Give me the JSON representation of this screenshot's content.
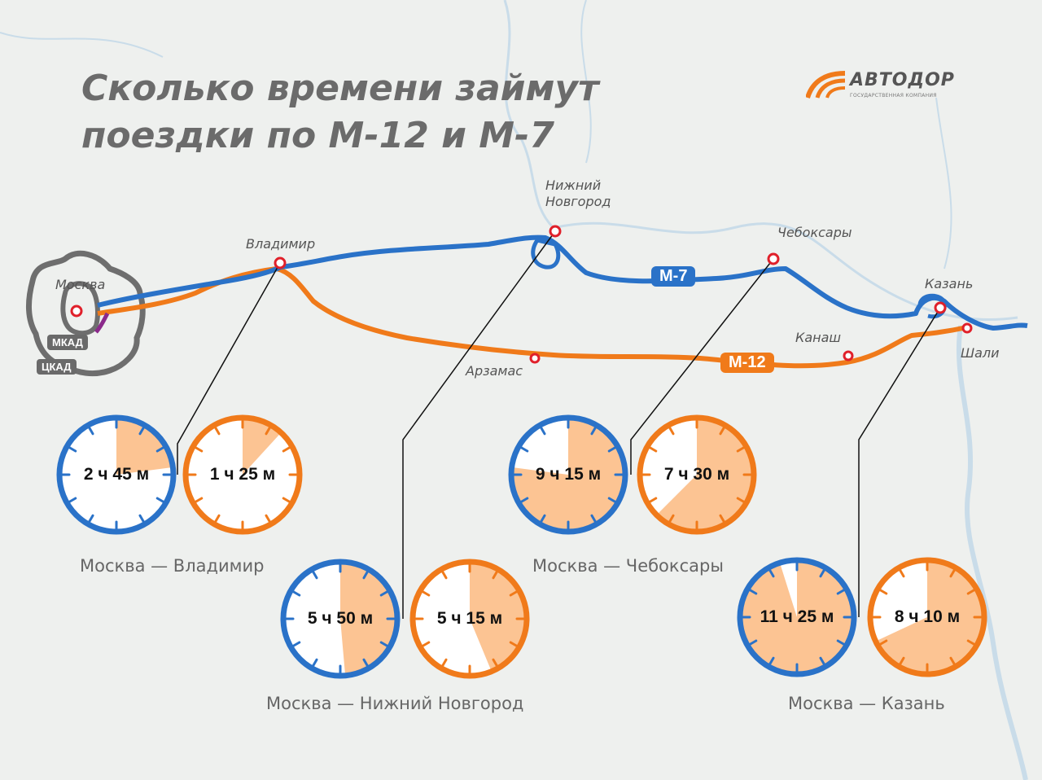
{
  "title": {
    "line1": "Сколько времени займут",
    "line2": "поездки по М-12 и М-7"
  },
  "logo": {
    "name": "АВТОДОР",
    "subtitle": "ГОСУДАРСТВЕННАЯ КОМПАНИЯ"
  },
  "colors": {
    "m7": "#2a72c8",
    "m12": "#f07a1a",
    "fill": "#fcc493",
    "ring": "#6e6e6e",
    "background": "#eef0ee"
  },
  "rings": {
    "inner": "МКАД",
    "outer": "ЦКАД"
  },
  "roads": {
    "m7": "М-7",
    "m12": "М-12"
  },
  "cities": {
    "moscow": "Москва",
    "vladimir": "Владимир",
    "nizhny_1": "Нижний",
    "nizhny_2": "Новгород",
    "cheboksary": "Чебоксары",
    "kazan": "Казань",
    "arzamas": "Арзамас",
    "kanash": "Канаш",
    "shali": "Шали"
  },
  "trips": [
    {
      "route": "Москва — Владимир",
      "m7_time": "2 ч 45 м",
      "m7_hours": 2.75,
      "m12_time": "1 ч 25 м",
      "m12_hours": 1.4167
    },
    {
      "route": "Москва — Нижний Новгород",
      "m7_time": "5 ч 50 м",
      "m7_hours": 5.8333,
      "m12_time": "5 ч 15 м",
      "m12_hours": 5.25
    },
    {
      "route": "Москва — Чебоксары",
      "m7_time": "9 ч 15 м",
      "m7_hours": 9.25,
      "m12_time": "7 ч 30 м",
      "m12_hours": 7.5
    },
    {
      "route": "Москва — Казань",
      "m7_time": "11 ч 25 м",
      "m7_hours": 11.4167,
      "m12_time": "8 ч 10 м",
      "m12_hours": 8.1667
    }
  ]
}
